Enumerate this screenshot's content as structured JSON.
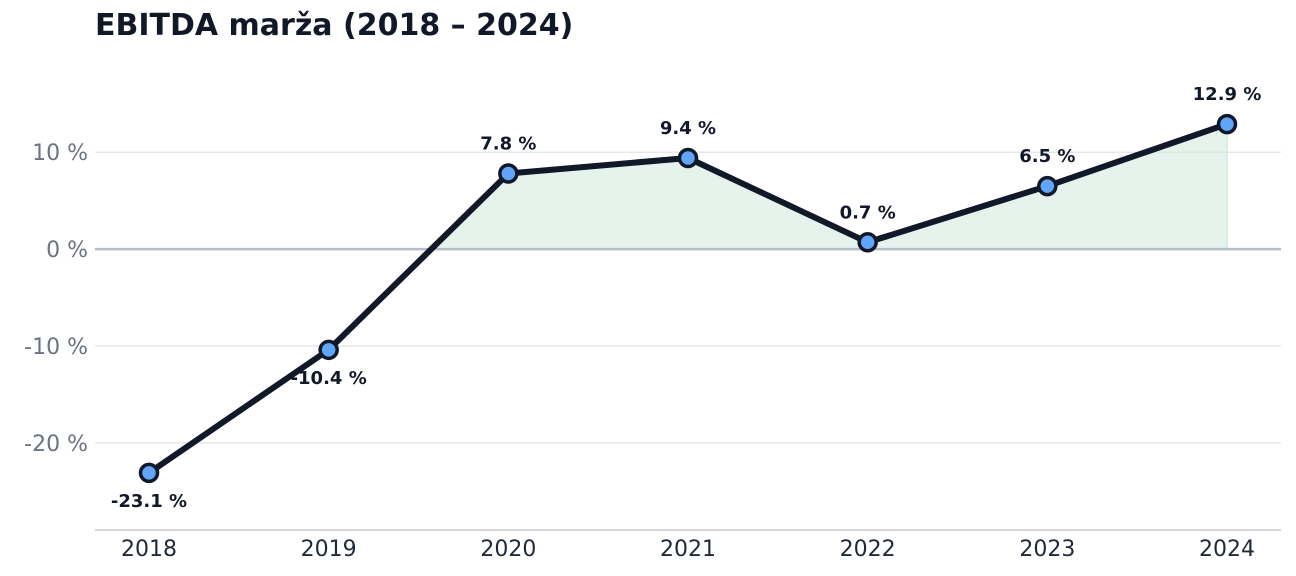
{
  "chart_data": {
    "type": "line",
    "title": "EBITDA marža (2018 – 2024)",
    "xlabel": "",
    "ylabel": "",
    "categories": [
      "2018",
      "2019",
      "2020",
      "2021",
      "2022",
      "2023",
      "2024"
    ],
    "values": [
      -23.1,
      -10.4,
      7.8,
      9.4,
      0.7,
      6.5,
      12.9
    ],
    "data_labels": [
      "-23.1 %",
      "-10.4 %",
      "7.8 %",
      "9.4 %",
      "0.7 %",
      "6.5 %",
      "12.9 %"
    ],
    "y_ticks": [
      -20,
      -10,
      0,
      10
    ],
    "y_tick_labels": [
      "-20 %",
      "-10 %",
      "0 %",
      "10 %"
    ],
    "ylim": [
      -29,
      19
    ],
    "grid": true,
    "legend": "none",
    "colors": {
      "line": "#111827",
      "marker_fill": "#60a5fa",
      "positive_fill": "#d1eadd",
      "grid": "#e5e7eb",
      "zero_line": "#b8bcc8",
      "axis": "#c8cbd2"
    }
  }
}
